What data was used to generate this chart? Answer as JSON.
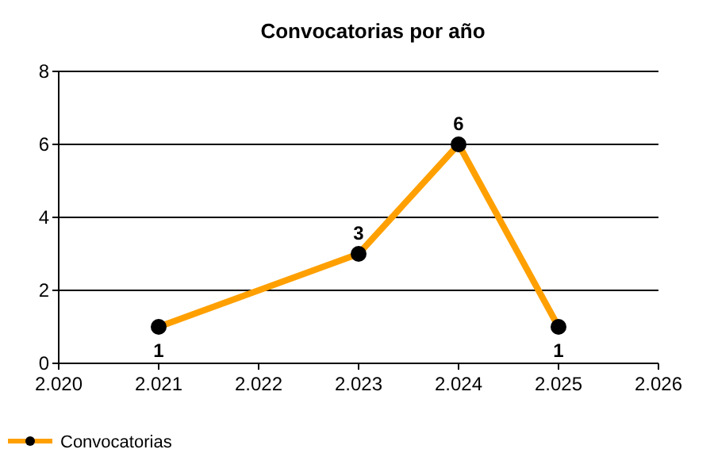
{
  "chart_data": {
    "type": "line",
    "title": "Convocatorias por año",
    "x": [
      2021,
      2023,
      2024,
      2025
    ],
    "series": [
      {
        "name": "Convocatorias",
        "color": "#ffa000",
        "values": [
          1,
          3,
          6,
          1
        ]
      }
    ],
    "xlim": [
      2020,
      2026
    ],
    "xticks": [
      {
        "value": 2020,
        "label": "2.020"
      },
      {
        "value": 2021,
        "label": "2.021"
      },
      {
        "value": 2022,
        "label": "2.022"
      },
      {
        "value": 2023,
        "label": "2.023"
      },
      {
        "value": 2024,
        "label": "2.024"
      },
      {
        "value": 2025,
        "label": "2.025"
      },
      {
        "value": 2026,
        "label": "2.026"
      }
    ],
    "ylim": [
      0,
      8
    ],
    "yticks": [
      0,
      2,
      4,
      6,
      8
    ],
    "grid": "y",
    "legend": "bottom left",
    "marker": "circle",
    "line_style": "solid",
    "data_labels": true
  }
}
